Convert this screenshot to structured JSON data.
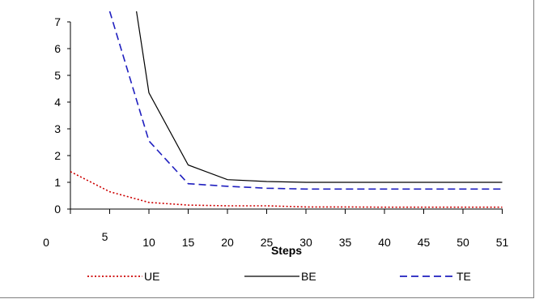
{
  "chart_data": {
    "type": "line",
    "title": "",
    "xlabel": "Steps",
    "ylabel": "",
    "x_tick_labels": [
      "0",
      "5",
      "10",
      "15",
      "20",
      "25",
      "30",
      "35",
      "40",
      "45",
      "50",
      "51"
    ],
    "y_tick_labels": [
      "0",
      "1",
      "2",
      "3",
      "4",
      "5",
      "6",
      "7"
    ],
    "ylim": [
      0,
      7
    ],
    "grid": false,
    "legend_position": "bottom",
    "series": [
      {
        "name": "UE",
        "color": "#cc0000",
        "dash": "dotted",
        "x": [
          0,
          1,
          2,
          3,
          4,
          5,
          6,
          7,
          8,
          9,
          10,
          11
        ],
        "y": [
          1.4,
          0.65,
          0.25,
          0.15,
          0.12,
          0.12,
          0.08,
          0.08,
          0.07,
          0.07,
          0.07,
          0.07
        ]
      },
      {
        "name": "BE",
        "color": "#000000",
        "dash": "solid",
        "x": [
          1.1,
          2,
          3,
          4,
          5,
          6,
          7,
          8,
          9,
          10,
          11
        ],
        "y": [
          13.0,
          4.35,
          1.65,
          1.1,
          1.03,
          1.0,
          1.0,
          1.0,
          1.0,
          1.0,
          1.0
        ]
      },
      {
        "name": "TE",
        "color": "#1f1fbf",
        "dash": "dashed",
        "x": [
          1,
          2,
          3,
          4,
          5,
          6,
          7,
          8,
          9,
          10,
          11
        ],
        "y": [
          7.4,
          2.55,
          0.95,
          0.85,
          0.78,
          0.75,
          0.75,
          0.75,
          0.75,
          0.75,
          0.75
        ]
      }
    ]
  }
}
